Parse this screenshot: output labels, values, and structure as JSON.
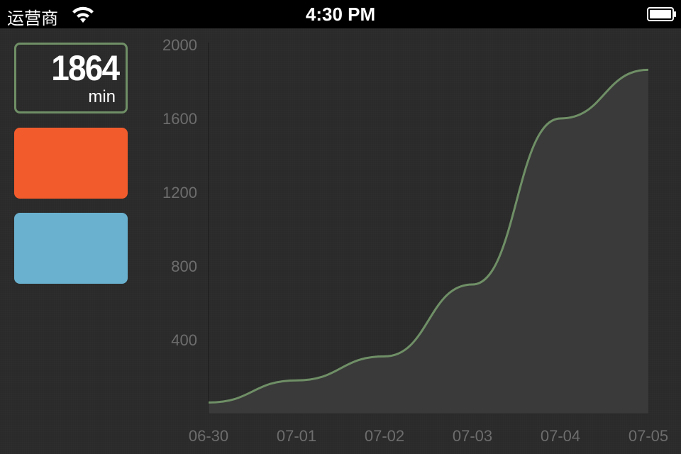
{
  "status_bar": {
    "carrier": "运营商",
    "time": "4:30 PM"
  },
  "summary": {
    "total_value": "1864",
    "total_unit": "min",
    "accent_color": "#6f8f66",
    "card_colors": [
      "#f25c2c",
      "#6ab1cf"
    ]
  },
  "chart_data": {
    "type": "area",
    "x": [
      "06-30",
      "07-01",
      "07-02",
      "07-03",
      "07-04",
      "07-05"
    ],
    "y_ticks": [
      "400",
      "800",
      "1200",
      "1600",
      "2000"
    ],
    "points": [
      {
        "x": "06-30",
        "y": 60
      },
      {
        "x": "07-01",
        "y": 180
      },
      {
        "x": "07-02",
        "y": 310
      },
      {
        "x": "07-03",
        "y": 700
      },
      {
        "x": "07-04",
        "y": 1600
      },
      {
        "x": "07-05",
        "y": 1864
      }
    ],
    "ylim": [
      0,
      2000
    ],
    "line_color": "#6f8f66",
    "fill_color": "#3a3a3a",
    "grid": false
  }
}
